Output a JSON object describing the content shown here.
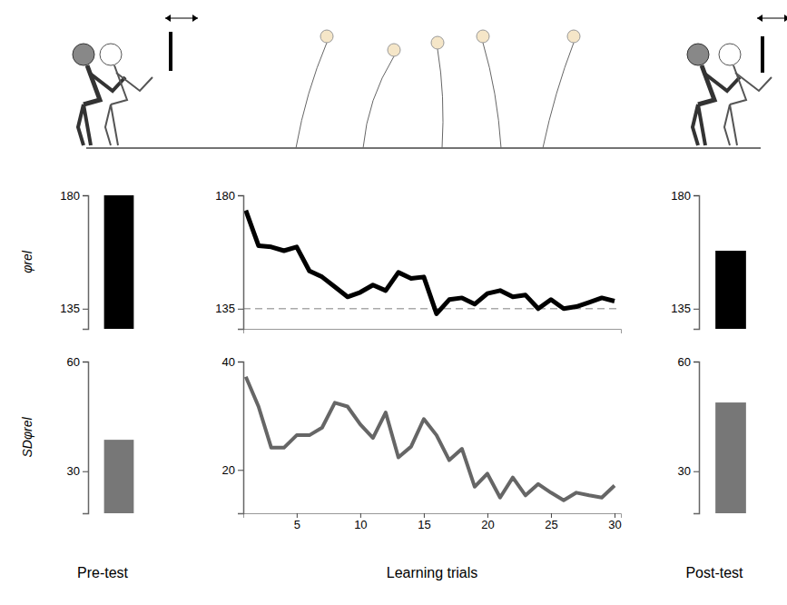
{
  "chart_data": [
    {
      "type": "bar",
      "categories": [
        null
      ],
      "values": [
        180
      ],
      "color": "#000000",
      "ylabel": "φrel",
      "ylim": [
        127,
        180
      ],
      "yticks": [
        135,
        180
      ],
      "tick_labels": "y"
    },
    {
      "type": "bar",
      "categories": [
        null
      ],
      "values": [
        38.6
      ],
      "color": "#777777",
      "ylabel": "SDφrel",
      "xlabel": "Pre-test",
      "ylim": [
        18.5,
        60
      ],
      "yticks": [
        30,
        60
      ],
      "tick_labels": "y"
    },
    {
      "type": "line",
      "color": "#000000",
      "x": [
        1,
        2,
        3,
        4,
        5,
        6,
        7,
        8,
        9,
        10,
        11,
        12,
        13,
        14,
        15,
        16,
        17,
        18,
        19,
        20,
        21,
        22,
        23,
        24,
        25,
        26,
        27,
        28,
        29,
        30
      ],
      "values": [
        174,
        160,
        159.5,
        158,
        159.5,
        150,
        147.6,
        143.7,
        139.7,
        141.5,
        144.4,
        142.2,
        149.4,
        147,
        147.6,
        133,
        138.6,
        139.3,
        136.8,
        141,
        142.2,
        139.7,
        140.4,
        135,
        138.6,
        135,
        135.8,
        137.5,
        139.3,
        138
      ],
      "target": 135,
      "xlim": [
        0.8,
        30.5
      ],
      "ylim": [
        127,
        180
      ],
      "yticks": [
        135,
        180
      ],
      "tick_labels": "y"
    },
    {
      "type": "line",
      "color": "#666666",
      "x": [
        1,
        2,
        3,
        4,
        5,
        6,
        7,
        8,
        9,
        10,
        11,
        12,
        13,
        14,
        15,
        16,
        17,
        18,
        19,
        20,
        21,
        22,
        23,
        24,
        25,
        26,
        27,
        28,
        29,
        30
      ],
      "values": [
        37.2,
        31.7,
        24.1,
        24.1,
        26.4,
        26.4,
        27.8,
        32.4,
        31.7,
        28.4,
        25.9,
        30.6,
        22.3,
        24.3,
        29.4,
        26.4,
        21.8,
        23.9,
        16.9,
        19.3,
        14.9,
        18.6,
        15.3,
        17.4,
        15.8,
        14.4,
        15.8,
        15.3,
        14.9,
        17.1
      ],
      "xlabel": "Learning trials",
      "xlim": [
        0.8,
        30.5
      ],
      "xticks": [
        5,
        10,
        15,
        20,
        25,
        30
      ],
      "ylim": [
        12,
        40
      ],
      "yticks": [
        20,
        40
      ]
    },
    {
      "type": "bar",
      "categories": [
        null
      ],
      "values": [
        158
      ],
      "color": "#000000",
      "ylim": [
        127,
        180
      ],
      "yticks": [
        135,
        180
      ],
      "tick_labels": "y"
    },
    {
      "type": "bar",
      "categories": [
        null
      ],
      "values": [
        48.8
      ],
      "color": "#777777",
      "xlabel": "Post-test",
      "ylim": [
        18.5,
        60
      ],
      "yticks": [
        30,
        60
      ],
      "tick_labels": "y"
    }
  ]
}
